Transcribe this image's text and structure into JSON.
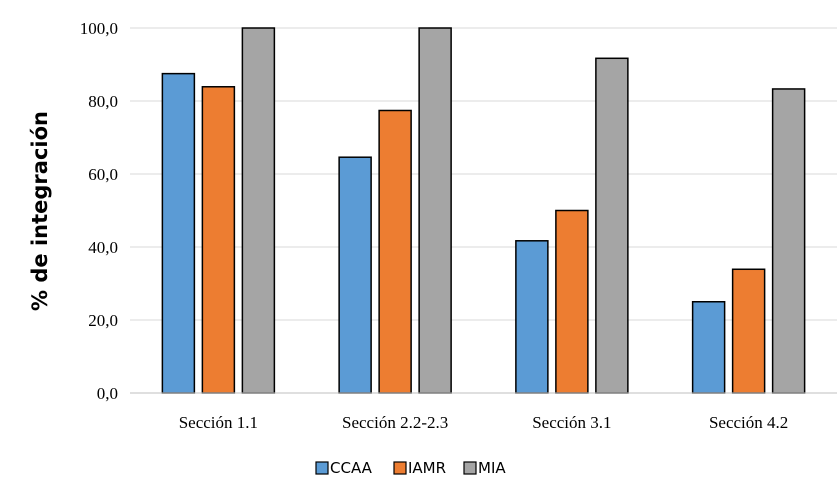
{
  "chart_data": {
    "type": "bar",
    "categories": [
      "Sección 1.1",
      "Sección 2.2-2.3",
      "Sección 3.1",
      "Sección 4.2"
    ],
    "series": [
      {
        "name": "CCAA",
        "values": [
          87.5,
          64.6,
          41.7,
          25.0
        ],
        "color": "#5B9BD5"
      },
      {
        "name": "IAMR",
        "values": [
          83.9,
          77.4,
          50.0,
          33.9
        ],
        "color": "#ED7D31"
      },
      {
        "name": "MIA",
        "values": [
          100.0,
          100.0,
          91.7,
          83.3
        ],
        "color": "#A5A5A5"
      }
    ],
    "ylabel": "% de integración",
    "xlabel": "",
    "ylim": [
      0,
      100
    ],
    "yticks": [
      "0,0",
      "20,0",
      "40,0",
      "60,0",
      "80,0",
      "100,0"
    ],
    "grid": true,
    "legend_position": "bottom"
  }
}
